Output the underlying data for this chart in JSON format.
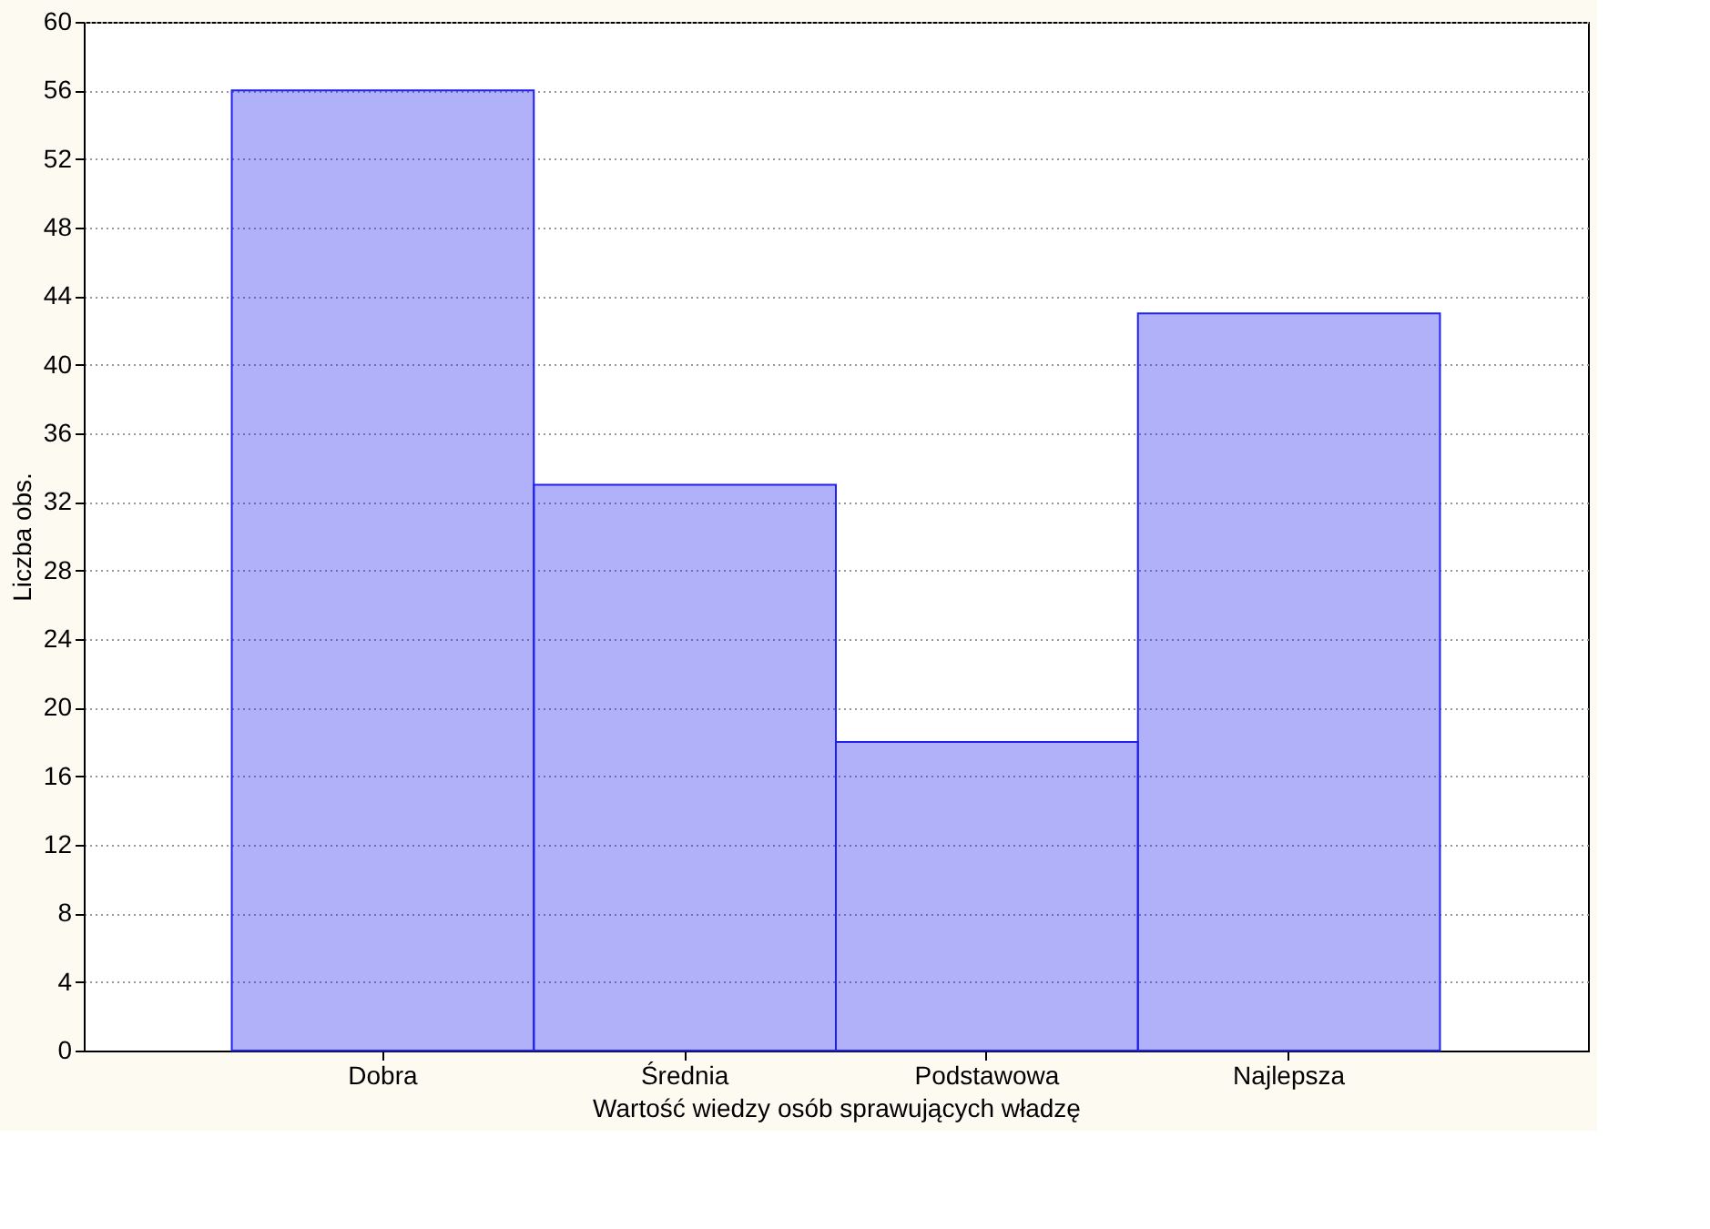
{
  "chart_data": {
    "type": "bar",
    "xlabel": "Wartość wiedzy osób sprawujących władzę",
    "ylabel": "Liczba obs.",
    "categories": [
      "Dobra",
      "Średnia",
      "Podstawowa",
      "Najlepsza"
    ],
    "values": [
      56,
      33,
      18,
      43
    ],
    "color": "#2020f0",
    "ylim": [
      0,
      60
    ],
    "yticks": [
      0,
      4,
      8,
      12,
      16,
      20,
      24,
      28,
      32,
      36,
      40,
      44,
      48,
      52,
      56,
      60
    ],
    "grid": "y"
  }
}
